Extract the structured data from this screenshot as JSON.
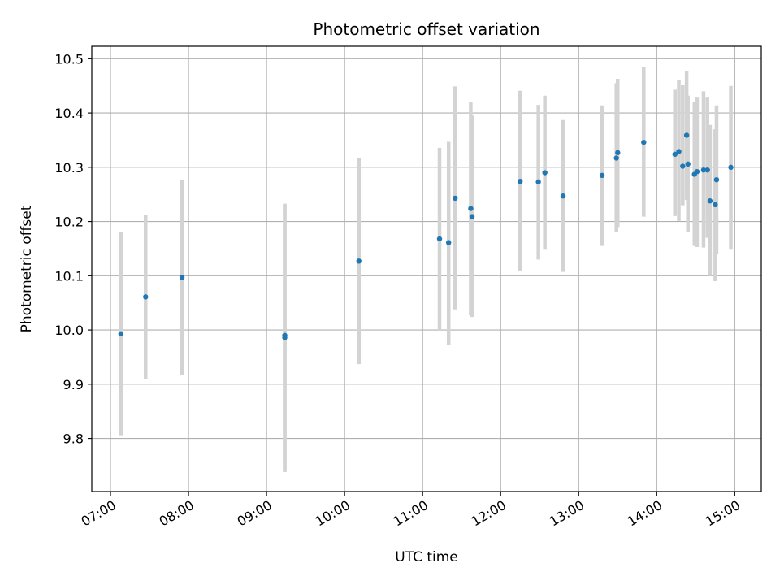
{
  "chart_data": {
    "type": "scatter",
    "title": "Photometric offset variation",
    "xlabel": "UTC time",
    "ylabel": "Photometric offset",
    "x_axis": {
      "ticks": [
        "07:00",
        "08:00",
        "09:00",
        "10:00",
        "11:00",
        "12:00",
        "13:00",
        "14:00",
        "15:00"
      ],
      "tick_values_hours": [
        7,
        8,
        9,
        10,
        11,
        12,
        13,
        14,
        15
      ],
      "range_hours": [
        6.76,
        15.34
      ]
    },
    "y_axis": {
      "ticks": [
        "9.8",
        "9.9",
        "10.0",
        "10.1",
        "10.2",
        "10.3",
        "10.4",
        "10.5"
      ],
      "tick_values": [
        9.8,
        9.9,
        10.0,
        10.1,
        10.2,
        10.3,
        10.4,
        10.5
      ],
      "ylim": [
        9.702,
        10.523
      ]
    },
    "grid": true,
    "colors": {
      "point": "#1f77b4",
      "errorbar": "#d3d3d3",
      "grid": "#b0b0b0"
    },
    "points": [
      {
        "time": "07:08",
        "y": 9.993,
        "lo": 9.806,
        "hi": 10.18
      },
      {
        "time": "07:27",
        "y": 10.061,
        "lo": 9.91,
        "hi": 10.212
      },
      {
        "time": "07:55",
        "y": 10.097,
        "lo": 9.917,
        "hi": 10.277
      },
      {
        "time": "09:14",
        "y": 9.99,
        "lo": 9.738,
        "hi": 10.233
      },
      {
        "time": "09:14",
        "y": 9.986,
        "lo": 9.74,
        "hi": 10.232
      },
      {
        "time": "10:11",
        "y": 10.127,
        "lo": 9.937,
        "hi": 10.317
      },
      {
        "time": "11:13",
        "y": 10.168,
        "lo": 10.0,
        "hi": 10.336
      },
      {
        "time": "11:20",
        "y": 10.161,
        "lo": 9.973,
        "hi": 10.347
      },
      {
        "time": "11:25",
        "y": 10.243,
        "lo": 10.038,
        "hi": 10.449
      },
      {
        "time": "11:37",
        "y": 10.224,
        "lo": 10.027,
        "hi": 10.421
      },
      {
        "time": "11:38",
        "y": 10.209,
        "lo": 10.024,
        "hi": 10.395
      },
      {
        "time": "12:15",
        "y": 10.274,
        "lo": 10.108,
        "hi": 10.441
      },
      {
        "time": "12:29",
        "y": 10.273,
        "lo": 10.13,
        "hi": 10.415
      },
      {
        "time": "12:34",
        "y": 10.29,
        "lo": 10.148,
        "hi": 10.432
      },
      {
        "time": "12:48",
        "y": 10.247,
        "lo": 10.107,
        "hi": 10.387
      },
      {
        "time": "13:18",
        "y": 10.285,
        "lo": 10.155,
        "hi": 10.414
      },
      {
        "time": "13:29",
        "y": 10.317,
        "lo": 10.18,
        "hi": 10.455
      },
      {
        "time": "13:30",
        "y": 10.327,
        "lo": 10.19,
        "hi": 10.463
      },
      {
        "time": "13:50",
        "y": 10.346,
        "lo": 10.209,
        "hi": 10.484
      },
      {
        "time": "14:14",
        "y": 10.324,
        "lo": 10.21,
        "hi": 10.443
      },
      {
        "time": "14:17",
        "y": 10.329,
        "lo": 10.201,
        "hi": 10.46
      },
      {
        "time": "14:20",
        "y": 10.302,
        "lo": 10.23,
        "hi": 10.452
      },
      {
        "time": "14:23",
        "y": 10.359,
        "lo": 10.24,
        "hi": 10.478
      },
      {
        "time": "14:24",
        "y": 10.306,
        "lo": 10.18,
        "hi": 10.432
      },
      {
        "time": "14:29",
        "y": 10.287,
        "lo": 10.155,
        "hi": 10.42
      },
      {
        "time": "14:31",
        "y": 10.292,
        "lo": 10.153,
        "hi": 10.43
      },
      {
        "time": "14:36",
        "y": 10.295,
        "lo": 10.152,
        "hi": 10.44
      },
      {
        "time": "14:39",
        "y": 10.295,
        "lo": 10.17,
        "hi": 10.43
      },
      {
        "time": "14:41",
        "y": 10.238,
        "lo": 10.1,
        "hi": 10.378
      },
      {
        "time": "14:45",
        "y": 10.231,
        "lo": 10.09,
        "hi": 10.37
      },
      {
        "time": "14:46",
        "y": 10.277,
        "lo": 10.14,
        "hi": 10.414
      },
      {
        "time": "14:57",
        "y": 10.3,
        "lo": 10.148,
        "hi": 10.45
      }
    ]
  }
}
